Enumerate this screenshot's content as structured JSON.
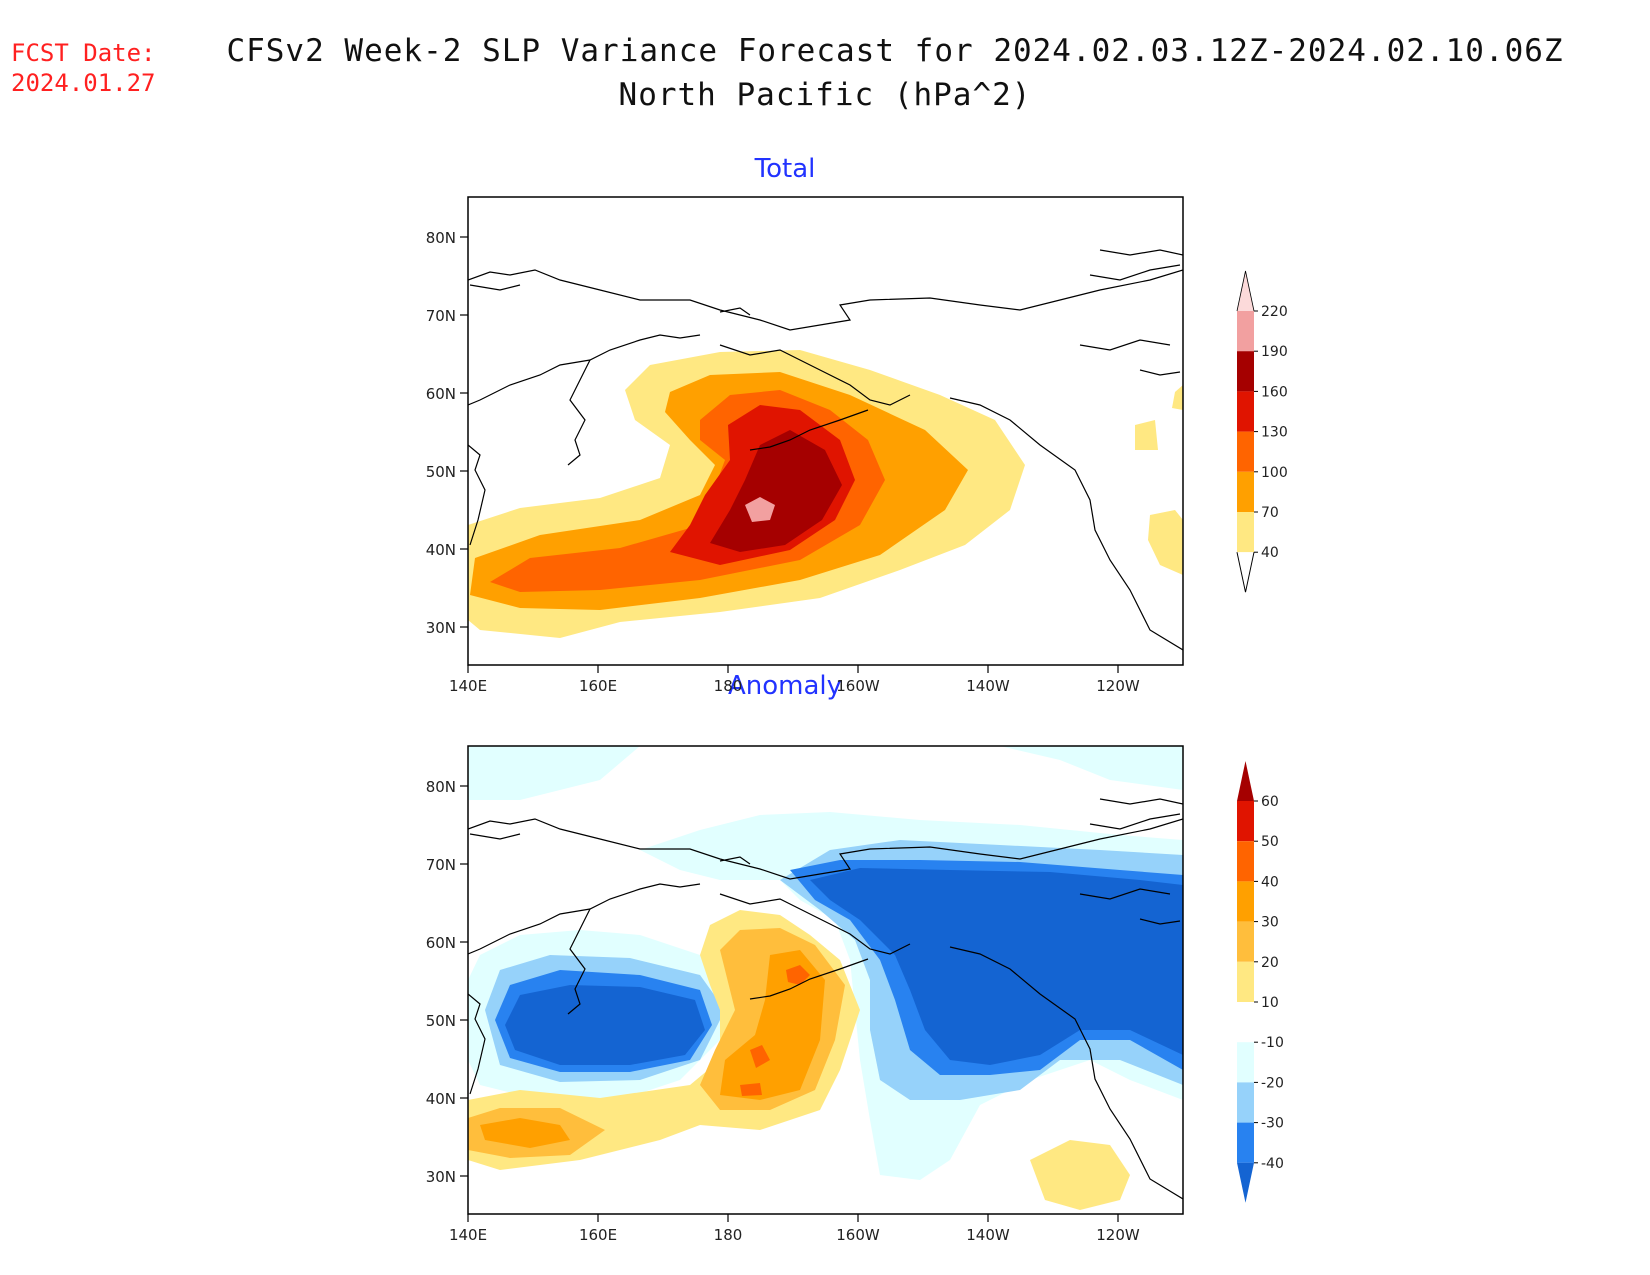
{
  "header": {
    "fcst_label": "FCST Date:",
    "fcst_date": "2024.01.27",
    "title_line1": "CFSv2 Week-2 SLP Variance Forecast for 2024.02.03.12Z-2024.02.10.06Z",
    "title_line2": "North Pacific (hPa^2)"
  },
  "axes": {
    "lat_ticks": [
      "80N",
      "70N",
      "60N",
      "50N",
      "40N",
      "30N"
    ],
    "lon_ticks": [
      "140E",
      "160E",
      "180",
      "160W",
      "140W",
      "120W"
    ]
  },
  "panels": [
    {
      "title": "Total",
      "colorbar": {
        "labels": [
          "220",
          "190",
          "160",
          "130",
          "100",
          "70",
          "40"
        ],
        "colors": [
          "#fcdada",
          "#f2a0a0",
          "#a50000",
          "#e01400",
          "#ff6400",
          "#ffa000",
          "#ffe882"
        ]
      }
    },
    {
      "title": "Anomaly",
      "colorbar": {
        "labels": [
          "60",
          "50",
          "40",
          "30",
          "20",
          "10",
          "-10",
          "-20",
          "-30",
          "-40"
        ],
        "colors": [
          "#a50000",
          "#e01400",
          "#ff6400",
          "#ffa000",
          "#ffbe3c",
          "#ffe882",
          "#ffffff",
          "#e1ffff",
          "#96d2fa",
          "#2882f0",
          "#1464d2"
        ]
      }
    }
  ]
}
